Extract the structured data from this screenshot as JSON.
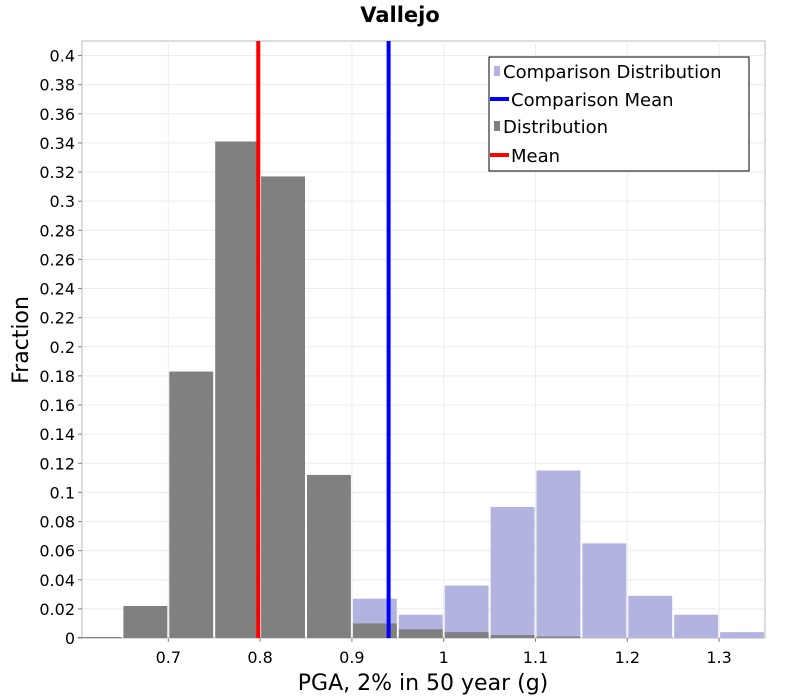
{
  "chart_data": {
    "type": "bar",
    "title": "Vallejo",
    "xlabel": "PGA, 2% in 50 year (g)",
    "ylabel": "Fraction",
    "xlim": [
      0.606,
      1.35
    ],
    "ylim": [
      0,
      0.41
    ],
    "bin_width": 0.05,
    "x_ticks": [
      {
        "value": 0.7,
        "label": "0.7"
      },
      {
        "value": 0.8,
        "label": "0.8"
      },
      {
        "value": 0.9,
        "label": "0.9"
      },
      {
        "value": 1.0,
        "label": "1"
      },
      {
        "value": 1.1,
        "label": "1.1"
      },
      {
        "value": 1.2,
        "label": "1.2"
      },
      {
        "value": 1.3,
        "label": "1.3"
      }
    ],
    "y_ticks": [
      {
        "value": 0,
        "label": "0"
      },
      {
        "value": 0.02,
        "label": "0.02"
      },
      {
        "value": 0.04,
        "label": "0.04"
      },
      {
        "value": 0.06,
        "label": "0.06"
      },
      {
        "value": 0.08,
        "label": "0.08"
      },
      {
        "value": 0.1,
        "label": "0.1"
      },
      {
        "value": 0.12,
        "label": "0.12"
      },
      {
        "value": 0.14,
        "label": "0.14"
      },
      {
        "value": 0.16,
        "label": "0.16"
      },
      {
        "value": 0.18,
        "label": "0.18"
      },
      {
        "value": 0.2,
        "label": "0.2"
      },
      {
        "value": 0.22,
        "label": "0.22"
      },
      {
        "value": 0.24,
        "label": "0.24"
      },
      {
        "value": 0.26,
        "label": "0.26"
      },
      {
        "value": 0.28,
        "label": "0.28"
      },
      {
        "value": 0.3,
        "label": "0.3"
      },
      {
        "value": 0.32,
        "label": "0.32"
      },
      {
        "value": 0.34,
        "label": "0.34"
      },
      {
        "value": 0.36,
        "label": "0.36"
      },
      {
        "value": 0.38,
        "label": "0.38"
      },
      {
        "value": 0.4,
        "label": "0.4"
      }
    ],
    "grid": true,
    "legend_position": "top-right",
    "series": [
      {
        "name": "Comparison Distribution",
        "kind": "bar",
        "color": "#b3b3e0",
        "x": [
          0.925,
          0.975,
          1.025,
          1.075,
          1.125,
          1.175,
          1.225,
          1.275,
          1.325
        ],
        "values": [
          0.027,
          0.016,
          0.036,
          0.09,
          0.115,
          0.065,
          0.029,
          0.016,
          0.004
        ]
      },
      {
        "name": "Comparison Mean",
        "kind": "vline",
        "color": "#0000ff",
        "x": 0.94
      },
      {
        "name": "Distribution",
        "kind": "bar",
        "color": "#808080",
        "x": [
          0.625,
          0.675,
          0.725,
          0.775,
          0.825,
          0.875,
          0.925,
          0.975,
          1.025,
          1.075,
          1.125
        ],
        "values": [
          0.0005,
          0.022,
          0.183,
          0.341,
          0.317,
          0.112,
          0.01,
          0.006,
          0.004,
          0.002,
          0.001
        ]
      },
      {
        "name": "Mean",
        "kind": "vline",
        "color": "#ff0000",
        "x": 0.798
      }
    ]
  }
}
